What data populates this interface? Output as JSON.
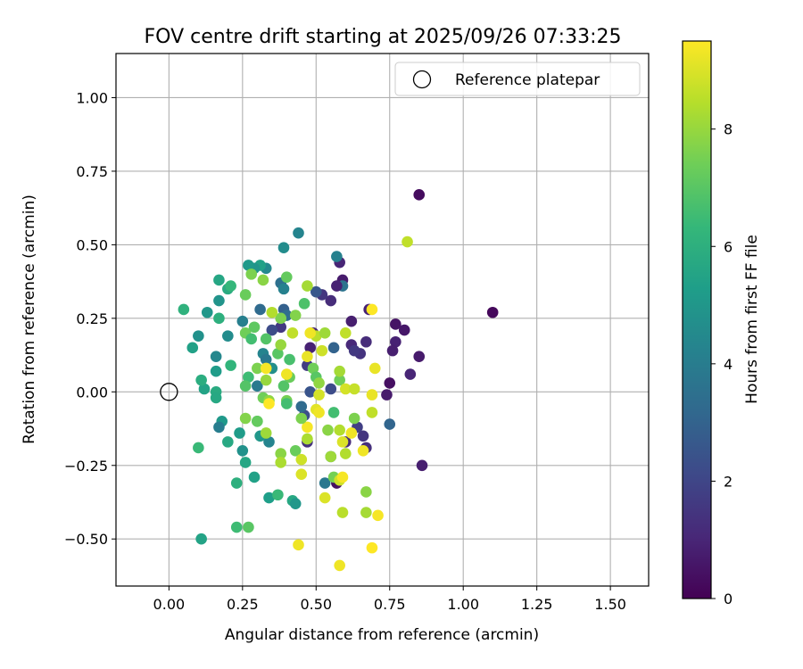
{
  "chart_data": {
    "type": "scatter",
    "title": "FOV centre drift starting at 2025/09/26 07:33:25",
    "xlabel": "Angular distance from reference (arcmin)",
    "ylabel": "Rotation from reference (arcmin)",
    "xlim": [
      -0.18,
      1.63
    ],
    "ylim": [
      -0.66,
      1.15
    ],
    "xticks": [
      0.0,
      0.25,
      0.5,
      0.75,
      1.0,
      1.25,
      1.5
    ],
    "xtick_labels": [
      "0.00",
      "0.25",
      "0.50",
      "0.75",
      "1.00",
      "1.25",
      "1.50"
    ],
    "yticks": [
      -0.5,
      -0.25,
      0.0,
      0.25,
      0.5,
      0.75,
      1.0
    ],
    "ytick_labels": [
      "−0.50",
      "−0.25",
      "0.00",
      "0.25",
      "0.50",
      "0.75",
      "1.00"
    ],
    "grid": true,
    "legend": {
      "location": "upper-right",
      "entries": [
        "Reference platepar"
      ]
    },
    "reference_point": {
      "x": 0.0,
      "y": 0.0,
      "label": "Reference platepar"
    },
    "colorbar": {
      "label": "Hours from first FF file",
      "colormap": "viridis",
      "range": [
        0,
        9.5
      ],
      "ticks": [
        0,
        2,
        4,
        6,
        8
      ],
      "tick_labels": [
        "0",
        "2",
        "4",
        "6",
        "8"
      ]
    },
    "points": [
      [
        0.85,
        0.67,
        0.3
      ],
      [
        1.1,
        0.27,
        0.2
      ],
      [
        0.86,
        -0.25,
        0.8
      ],
      [
        0.77,
        0.23,
        0.5
      ],
      [
        0.8,
        0.21,
        0.6
      ],
      [
        0.77,
        0.17,
        0.9
      ],
      [
        0.85,
        0.12,
        0.7
      ],
      [
        0.82,
        0.06,
        1.0
      ],
      [
        0.76,
        0.14,
        0.8
      ],
      [
        0.75,
        0.03,
        0.4
      ],
      [
        0.74,
        -0.01,
        0.7
      ],
      [
        0.75,
        -0.11,
        3.1
      ],
      [
        0.68,
        0.28,
        0.9
      ],
      [
        0.67,
        0.17,
        1.2
      ],
      [
        0.65,
        0.13,
        1.4
      ],
      [
        0.66,
        -0.15,
        1.5
      ],
      [
        0.67,
        -0.19,
        1.3
      ],
      [
        0.64,
        -0.12,
        1.8
      ],
      [
        0.62,
        0.24,
        0.8
      ],
      [
        0.62,
        0.16,
        1.1
      ],
      [
        0.63,
        0.14,
        1.6
      ],
      [
        0.6,
        -0.17,
        1.2
      ],
      [
        0.58,
        0.44,
        1.0
      ],
      [
        0.59,
        0.38,
        0.7
      ],
      [
        0.59,
        0.36,
        3.6
      ],
      [
        0.57,
        0.46,
        4.2
      ],
      [
        0.57,
        0.36,
        0.9
      ],
      [
        0.55,
        0.31,
        1.2
      ],
      [
        0.55,
        0.01,
        2.2
      ],
      [
        0.57,
        -0.31,
        0.4
      ],
      [
        0.56,
        0.15,
        3.0
      ],
      [
        0.55,
        -0.22,
        3.7
      ],
      [
        0.53,
        -0.31,
        3.8
      ],
      [
        0.52,
        0.33,
        1.5
      ],
      [
        0.5,
        0.34,
        2.6
      ],
      [
        0.49,
        0.2,
        1.1
      ],
      [
        0.48,
        0.15,
        0.9
      ],
      [
        0.47,
        0.09,
        1.7
      ],
      [
        0.48,
        0.0,
        2.5
      ],
      [
        0.47,
        -0.17,
        1.4
      ],
      [
        0.46,
        -0.08,
        2.3
      ],
      [
        0.45,
        -0.05,
        3.3
      ],
      [
        0.44,
        0.54,
        4.3
      ],
      [
        0.39,
        0.49,
        4.6
      ],
      [
        0.38,
        0.37,
        3.5
      ],
      [
        0.39,
        0.35,
        4.2
      ],
      [
        0.39,
        0.28,
        2.9
      ],
      [
        0.4,
        0.26,
        3.4
      ],
      [
        0.38,
        0.22,
        1.6
      ],
      [
        0.35,
        0.21,
        2.2
      ],
      [
        0.33,
        0.42,
        4.5
      ],
      [
        0.31,
        0.43,
        5.4
      ],
      [
        0.29,
        0.42,
        4.9
      ],
      [
        0.27,
        0.43,
        5.1
      ],
      [
        0.31,
        0.28,
        3.3
      ],
      [
        0.32,
        0.13,
        4.3
      ],
      [
        0.33,
        0.11,
        3.8
      ],
      [
        0.3,
        0.02,
        3.9
      ],
      [
        0.35,
        0.08,
        4.7
      ],
      [
        0.34,
        -0.17,
        4.3
      ],
      [
        0.34,
        -0.36,
        5.3
      ],
      [
        0.31,
        -0.15,
        5.0
      ],
      [
        0.26,
        -0.24,
        5.6
      ],
      [
        0.25,
        0.24,
        4.1
      ],
      [
        0.24,
        -0.14,
        5.2
      ],
      [
        0.25,
        -0.2,
        4.8
      ],
      [
        0.23,
        -0.31,
        6.0
      ],
      [
        0.2,
        0.19,
        4.6
      ],
      [
        0.2,
        -0.17,
        5.7
      ],
      [
        0.18,
        -0.1,
        5.1
      ],
      [
        0.17,
        -0.12,
        4.0
      ],
      [
        0.17,
        0.31,
        4.9
      ],
      [
        0.16,
        0.12,
        4.4
      ],
      [
        0.16,
        0.07,
        5.2
      ],
      [
        0.16,
        0.0,
        5.8
      ],
      [
        0.16,
        -0.02,
        5.7
      ],
      [
        0.13,
        0.27,
        5.0
      ],
      [
        0.12,
        0.01,
        5.5
      ],
      [
        0.11,
        0.04,
        5.9
      ],
      [
        0.1,
        0.19,
        4.8
      ],
      [
        0.08,
        0.15,
        5.4
      ],
      [
        0.05,
        0.28,
        6.1
      ],
      [
        0.1,
        -0.19,
        6.4
      ],
      [
        0.11,
        -0.5,
        5.5
      ],
      [
        0.17,
        0.38,
        5.6
      ],
      [
        0.2,
        0.35,
        5.8
      ],
      [
        0.21,
        0.36,
        6.3
      ],
      [
        0.17,
        0.25,
        6.0
      ],
      [
        0.21,
        0.09,
        6.2
      ],
      [
        0.23,
        -0.46,
        6.5
      ],
      [
        0.27,
        -0.46,
        7.0
      ],
      [
        0.29,
        -0.29,
        5.4
      ],
      [
        0.3,
        -0.1,
        6.8
      ],
      [
        0.26,
        0.33,
        7.3
      ],
      [
        0.28,
        0.4,
        7.6
      ],
      [
        0.32,
        0.38,
        7.8
      ],
      [
        0.26,
        0.2,
        7.4
      ],
      [
        0.29,
        0.22,
        7.1
      ],
      [
        0.28,
        0.18,
        6.6
      ],
      [
        0.33,
        0.18,
        6.9
      ],
      [
        0.27,
        0.05,
        6.5
      ],
      [
        0.26,
        0.02,
        6.9
      ],
      [
        0.3,
        0.08,
        7.6
      ],
      [
        0.33,
        0.04,
        8.0
      ],
      [
        0.26,
        -0.09,
        7.7
      ],
      [
        0.3,
        -0.1,
        7.2
      ],
      [
        0.32,
        -0.02,
        7.4
      ],
      [
        0.34,
        -0.03,
        7.9
      ],
      [
        0.33,
        -0.14,
        8.1
      ],
      [
        0.38,
        -0.21,
        7.8
      ],
      [
        0.38,
        -0.24,
        8.3
      ],
      [
        0.37,
        -0.35,
        6.4
      ],
      [
        0.42,
        -0.37,
        5.7
      ],
      [
        0.43,
        -0.38,
        5.0
      ],
      [
        0.4,
        -0.03,
        7.5
      ],
      [
        0.4,
        -0.04,
        6.6
      ],
      [
        0.39,
        0.02,
        6.9
      ],
      [
        0.41,
        0.11,
        6.7
      ],
      [
        0.41,
        0.05,
        7.3
      ],
      [
        0.37,
        0.13,
        7.0
      ],
      [
        0.38,
        0.16,
        8.0
      ],
      [
        0.38,
        0.25,
        7.6
      ],
      [
        0.35,
        0.27,
        8.4
      ],
      [
        0.4,
        0.39,
        7.2
      ],
      [
        0.43,
        0.26,
        7.7
      ],
      [
        0.42,
        0.2,
        8.6
      ],
      [
        0.46,
        0.3,
        6.8
      ],
      [
        0.47,
        0.36,
        8.2
      ],
      [
        0.5,
        0.19,
        8.5
      ],
      [
        0.47,
        0.12,
        9.2
      ],
      [
        0.49,
        0.08,
        7.4
      ],
      [
        0.5,
        0.05,
        7.0
      ],
      [
        0.51,
        0.03,
        7.9
      ],
      [
        0.5,
        -0.06,
        9.1
      ],
      [
        0.51,
        -0.07,
        9.3
      ],
      [
        0.51,
        -0.01,
        8.9
      ],
      [
        0.52,
        0.14,
        8.8
      ],
      [
        0.53,
        0.2,
        8.1
      ],
      [
        0.47,
        -0.12,
        9.4
      ],
      [
        0.47,
        -0.16,
        8.3
      ],
      [
        0.45,
        -0.09,
        7.6
      ],
      [
        0.43,
        -0.2,
        7.3
      ],
      [
        0.45,
        -0.23,
        8.8
      ],
      [
        0.45,
        -0.28,
        9.0
      ],
      [
        0.44,
        -0.52,
        9.3
      ],
      [
        0.53,
        -0.36,
        9.0
      ],
      [
        0.56,
        -0.29,
        7.5
      ],
      [
        0.58,
        -0.3,
        8.8
      ],
      [
        0.59,
        -0.29,
        9.4
      ],
      [
        0.59,
        -0.41,
        8.5
      ],
      [
        0.58,
        -0.59,
        9.3
      ],
      [
        0.54,
        -0.13,
        7.8
      ],
      [
        0.55,
        -0.22,
        8.1
      ],
      [
        0.56,
        -0.07,
        6.6
      ],
      [
        0.58,
        -0.13,
        8.4
      ],
      [
        0.59,
        -0.17,
        9.0
      ],
      [
        0.6,
        -0.21,
        8.4
      ],
      [
        0.62,
        -0.14,
        9.3
      ],
      [
        0.63,
        -0.09,
        7.6
      ],
      [
        0.66,
        -0.2,
        9.3
      ],
      [
        0.58,
        0.04,
        7.4
      ],
      [
        0.58,
        0.07,
        8.2
      ],
      [
        0.6,
        0.01,
        8.9
      ],
      [
        0.63,
        0.01,
        8.7
      ],
      [
        0.6,
        0.2,
        8.6
      ],
      [
        0.69,
        0.28,
        9.5
      ],
      [
        0.7,
        0.08,
        9.2
      ],
      [
        0.69,
        -0.01,
        9.2
      ],
      [
        0.69,
        -0.07,
        8.6
      ],
      [
        0.67,
        -0.34,
        7.8
      ],
      [
        0.67,
        -0.41,
        8.2
      ],
      [
        0.71,
        -0.42,
        9.4
      ],
      [
        0.69,
        -0.53,
        9.5
      ],
      [
        0.81,
        0.51,
        8.6
      ],
      [
        0.4,
        0.06,
        9.3
      ],
      [
        0.33,
        0.08,
        9.4
      ],
      [
        0.34,
        -0.04,
        9.5
      ],
      [
        0.48,
        0.2,
        9.3
      ]
    ]
  }
}
